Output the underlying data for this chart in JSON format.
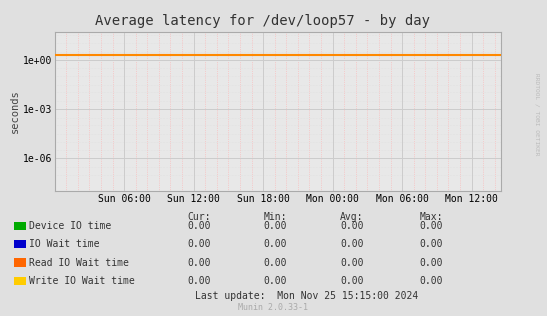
{
  "title": "Average latency for /dev/loop57 - by day",
  "ylabel": "seconds",
  "bg_color": "#e0e0e0",
  "plot_bg_color": "#e8e8e8",
  "grid_color_major": "#cccccc",
  "grid_color_minor_v": "#ffb0b0",
  "grid_color_minor_h": "#dddddd",
  "x_labels": [
    "Sun 06:00",
    "Sun 12:00",
    "Sun 18:00",
    "Mon 00:00",
    "Mon 06:00",
    "Mon 12:00"
  ],
  "x_ticks": [
    6,
    12,
    18,
    24,
    30,
    36
  ],
  "x_min": 0,
  "x_max": 38.5,
  "y_min": 1e-08,
  "y_max": 50.0,
  "orange_line_y": 2.0,
  "orange_line_color": "#ff8800",
  "right_label": "RRDTOOL / TOBI OETIKER",
  "right_label_color": "#bbbbbb",
  "legend_items": [
    {
      "label": "Device IO time",
      "color": "#00aa00"
    },
    {
      "label": "IO Wait time",
      "color": "#0000cc"
    },
    {
      "label": "Read IO Wait time",
      "color": "#ff6600"
    },
    {
      "label": "Write IO Wait time",
      "color": "#ffcc00"
    }
  ],
  "table_headers": [
    "Cur:",
    "Min:",
    "Avg:",
    "Max:"
  ],
  "table_values": [
    [
      "0.00",
      "0.00",
      "0.00",
      "0.00"
    ],
    [
      "0.00",
      "0.00",
      "0.00",
      "0.00"
    ],
    [
      "0.00",
      "0.00",
      "0.00",
      "0.00"
    ],
    [
      "0.00",
      "0.00",
      "0.00",
      "0.00"
    ]
  ],
  "last_update": "Last update:  Mon Nov 25 15:15:00 2024",
  "munin_version": "Munin 2.0.33-1",
  "arrow_color": "#aaaacc",
  "spine_color": "#aaaaaa"
}
